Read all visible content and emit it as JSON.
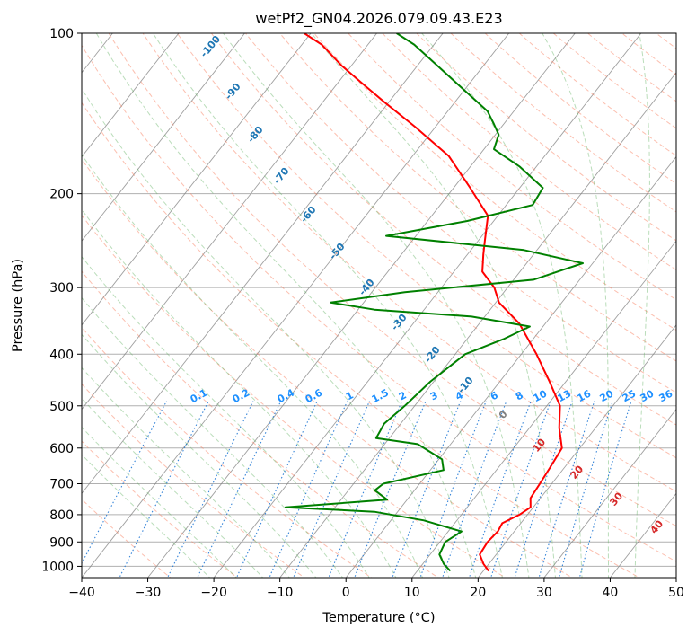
{
  "chart_data": {
    "type": "line",
    "subtype": "skew-t log-p",
    "title": "wetPf2_GN04.2026.079.09.43.E23",
    "xlabel": "Temperature (°C)",
    "ylabel": "Pressure (hPa)",
    "xlim": [
      -40,
      50
    ],
    "ylim": [
      1050,
      100
    ],
    "y_scale": "log",
    "x_ticks": [
      -40,
      -30,
      -20,
      -10,
      0,
      10,
      20,
      30,
      40,
      50
    ],
    "y_ticks": [
      100,
      200,
      300,
      400,
      500,
      600,
      700,
      800,
      900,
      1000
    ],
    "grid": true,
    "colors": {
      "temperature": "#ff0000",
      "dewpoint": "#008000",
      "dry_adiabats": "#fa8060",
      "moist_adiabats": "#66b366",
      "mixing_ratio": "#1f77d4",
      "isotherms": "#808080",
      "isobars": "#b0b0b0",
      "curved_guides": "#c4a484",
      "dry_label": "#1f77b4",
      "moist_label_warm": "#d62728",
      "mix_label": "#1e90ff"
    },
    "series": [
      {
        "name": "temperature",
        "points": [
          [
            20.8,
            1020
          ],
          [
            19.2,
            990
          ],
          [
            17.5,
            950
          ],
          [
            17.2,
            900
          ],
          [
            17.5,
            860
          ],
          [
            17.2,
            830
          ],
          [
            18.8,
            800
          ],
          [
            19.6,
            775
          ],
          [
            18.5,
            745
          ],
          [
            18.2,
            700
          ],
          [
            17.8,
            650
          ],
          [
            17.3,
            600
          ],
          [
            14.5,
            550
          ],
          [
            12.0,
            500
          ],
          [
            7.5,
            450
          ],
          [
            2.3,
            400
          ],
          [
            -4.0,
            350
          ],
          [
            -9.5,
            320
          ],
          [
            -12.0,
            300
          ],
          [
            -15.7,
            280
          ],
          [
            -17.6,
            260
          ],
          [
            -19.0,
            245
          ],
          [
            -21.5,
            220
          ],
          [
            -27.5,
            195
          ],
          [
            -34.5,
            170
          ],
          [
            -43.0,
            150
          ],
          [
            -50.5,
            135
          ],
          [
            -55.8,
            125
          ],
          [
            -61.5,
            115
          ],
          [
            -67.0,
            105
          ],
          [
            -71.0,
            100
          ]
        ]
      },
      {
        "name": "dewpoint",
        "points": [
          [
            15.0,
            1020
          ],
          [
            13.2,
            990
          ],
          [
            11.4,
            950
          ],
          [
            10.8,
            900
          ],
          [
            12.0,
            860
          ],
          [
            5.0,
            820
          ],
          [
            -3.5,
            790
          ],
          [
            -17.5,
            775
          ],
          [
            -3.0,
            750
          ],
          [
            -6.0,
            720
          ],
          [
            -5.5,
            700
          ],
          [
            2.0,
            660
          ],
          [
            0.5,
            630
          ],
          [
            -5.0,
            590
          ],
          [
            -12.0,
            575
          ],
          [
            -12.5,
            540
          ],
          [
            -11.5,
            500
          ],
          [
            -10.5,
            450
          ],
          [
            -8.5,
            400
          ],
          [
            -4.5,
            375
          ],
          [
            -2.0,
            355
          ],
          [
            -12.0,
            340
          ],
          [
            -27.5,
            330
          ],
          [
            -35.0,
            320
          ],
          [
            -25.0,
            306
          ],
          [
            -7.0,
            290
          ],
          [
            -1.5,
            270
          ],
          [
            -12.0,
            255
          ],
          [
            -34.5,
            240
          ],
          [
            -24.0,
            225
          ],
          [
            -16.0,
            210
          ],
          [
            -16.5,
            195
          ],
          [
            -22.5,
            178
          ],
          [
            -28.5,
            165
          ],
          [
            -29.5,
            155
          ],
          [
            -31.5,
            148
          ],
          [
            -34.0,
            140
          ],
          [
            -41.5,
            125
          ],
          [
            -47.0,
            115
          ],
          [
            -53.0,
            105
          ],
          [
            -57.0,
            100
          ]
        ]
      }
    ],
    "dry_adiabat_labels": [
      "-100",
      "-90",
      "-80",
      "-70",
      "-60",
      "-50",
      "-40",
      "-30",
      "-20",
      "-10"
    ],
    "moist_adiabat_labels": [
      "0",
      "10",
      "20",
      "30",
      "40"
    ],
    "mixing_ratio_labels": [
      "0.1",
      "0.2",
      "0.4",
      "0.6",
      "1",
      "1.5",
      "2",
      "3",
      "4",
      "6",
      "8",
      "10",
      "13",
      "16",
      "20",
      "25",
      "30",
      "36"
    ]
  }
}
